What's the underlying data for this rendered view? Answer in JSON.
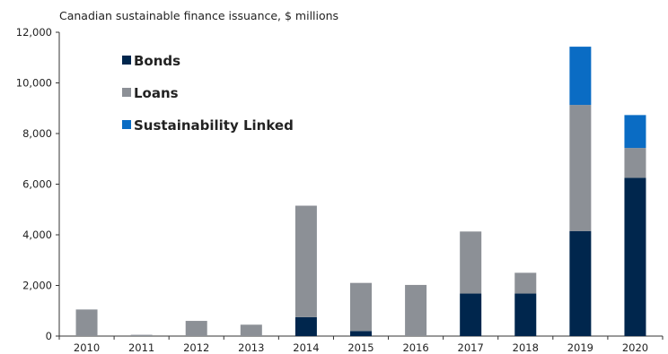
{
  "chart_data": {
    "type": "bar",
    "stacked": true,
    "subtitle": "Canadian sustainable finance issuance, $ millions",
    "categories": [
      "2010",
      "2011",
      "2012",
      "2013",
      "2014",
      "2015",
      "2016",
      "2017",
      "2018",
      "2019",
      "2020"
    ],
    "series": [
      {
        "name": "Bonds",
        "color": "#00264d",
        "values": [
          0,
          0,
          0,
          0,
          750,
          200,
          0,
          1680,
          1680,
          4150,
          6250
        ]
      },
      {
        "name": "Loans",
        "color": "#8c9096",
        "values": [
          1050,
          50,
          600,
          450,
          4400,
          1900,
          2020,
          2450,
          820,
          4980,
          1180
        ]
      },
      {
        "name": "Sustainability Linked",
        "color": "#0a6cc4",
        "values": [
          0,
          0,
          0,
          0,
          0,
          0,
          0,
          0,
          0,
          2300,
          1300
        ]
      }
    ],
    "ylim": [
      0,
      12000
    ],
    "yticks": [
      "0",
      "2,000",
      "4,000",
      "6,000",
      "8,000",
      "10,000",
      "12,000"
    ],
    "legend_position": "top-left inside"
  }
}
